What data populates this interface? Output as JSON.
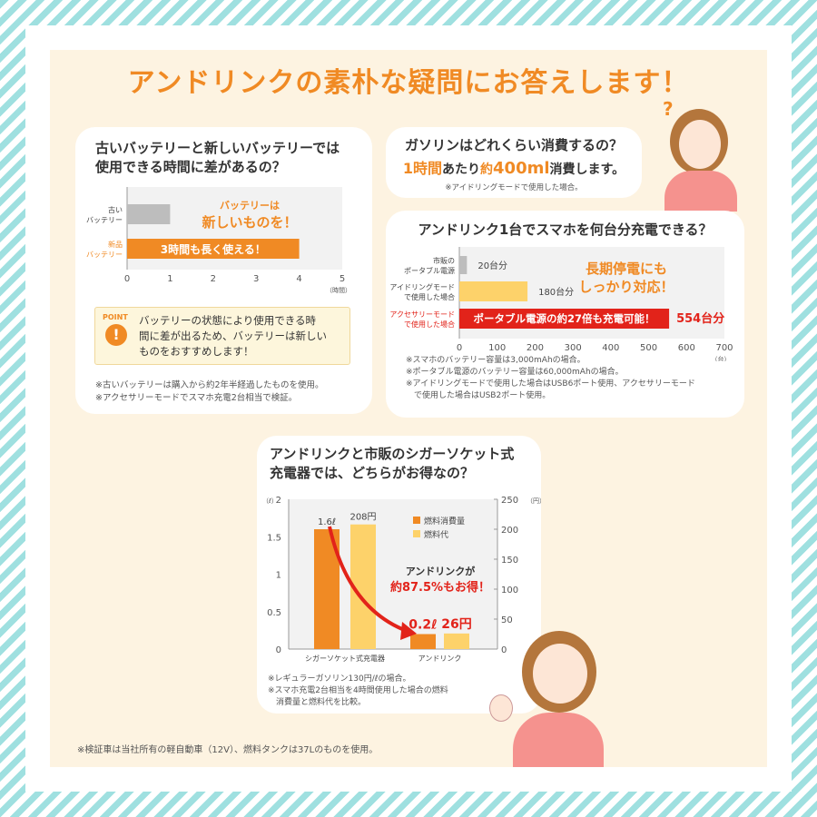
{
  "title": "アンドリンクの素朴な疑問にお答えします！",
  "colors": {
    "orange": "#f08a24",
    "yellow": "#fdd26a",
    "gray": "#bdbdbd",
    "red": "#e2231a",
    "accent_text": "#f08a24"
  },
  "card1": {
    "question": [
      "古いバッテリーと新しいバッテリーでは",
      "使用できる時間に差があるの？"
    ],
    "callout": [
      "バッテリーは",
      "新しいものを！"
    ],
    "bar_label_new": "3時間も長く使える！",
    "point_label": "POINT",
    "point_text": [
      "バッテリーの状態により使用できる時",
      "間に差が出るため、バッテリーは新しい",
      "ものをおすすめします！"
    ],
    "notes": [
      "※古いバッテリーは購入から約2年半経過したものを使用。",
      "※アクセサリーモードでスマホ充電2台相当で検証。"
    ]
  },
  "card2": {
    "question": "ガソリンはどれくらい消費するの？",
    "answer_prefix": "1時間",
    "answer_mid": "あたり",
    "answer_approx": "約",
    "answer_value": "400ml",
    "answer_suffix": "消費します。",
    "note": "※アイドリングモードで使用した場合。"
  },
  "card3": {
    "question": "アンドリンク1台でスマホを何台分充電できる？",
    "callout": [
      "長期停電にも",
      "しっかり対応！"
    ],
    "bar_label": "ポータブル電源の約27倍も充電可能！",
    "notes": [
      "※スマホのバッテリー容量は3,000mAhの場合。",
      "※ポータブル電源のバッテリー容量は60,000mAhの場合。",
      "※アイドリングモードで使用した場合はUSB6ポート使用、アクセサリーモード",
      "　で使用した場合はUSB2ポート使用。"
    ]
  },
  "card4": {
    "question": [
      "アンドリンクと市販のシガーソケット式",
      "充電器では、どちらがお得なの？"
    ],
    "callout": [
      "アンドリンクが",
      "約87.5%もお得！"
    ],
    "notes": [
      "※レギュラーガソリン130円/ℓの場合。",
      "※スマホ充電2台相当を4時間使用した場合の燃料",
      "　消費量と燃料代を比較。"
    ]
  },
  "footer": "※検証車は当社所有の軽自動車（12V）、燃料タンクは37Lのものを使用。",
  "chart_data": [
    {
      "type": "bar",
      "orientation": "horizontal",
      "title": "古いバッテリーと新しいバッテリーでは使用できる時間に差があるの？",
      "categories": [
        "古い\nバッテリー",
        "新品\nバッテリー"
      ],
      "values": [
        1,
        4
      ],
      "colors": [
        "#bdbdbd",
        "#f08a24"
      ],
      "xlabel": "（時間）",
      "xlim": [
        0,
        5
      ],
      "xticks": [
        "0",
        "1",
        "2",
        "3",
        "4",
        "5"
      ]
    },
    {
      "type": "bar",
      "orientation": "horizontal",
      "title": "アンドリンク1台でスマホを何台分充電できる？",
      "categories": [
        "市販の\nポータブル電源",
        "アイドリングモード\nで使用した場合",
        "アクセサリーモード\nで使用した場合"
      ],
      "values": [
        20,
        180,
        554
      ],
      "data_labels": [
        "20台分",
        "180台分",
        "554台分"
      ],
      "colors": [
        "#bdbdbd",
        "#fdd26a",
        "#e2231a"
      ],
      "xlabel": "（台）",
      "xlim": [
        0,
        700
      ],
      "xticks": [
        "0",
        "100",
        "200",
        "300",
        "400",
        "500",
        "600",
        "700"
      ]
    },
    {
      "type": "bar",
      "title": "アンドリンクと市販のシガーソケット式充電器では、どちらがお得なの？",
      "categories": [
        "シガーソケット式充電器",
        "アンドリンク"
      ],
      "series": [
        {
          "name": "燃料消費量",
          "axis": "left",
          "values": [
            1.6,
            0.2
          ],
          "data_labels": [
            "1.6ℓ",
            "0.2ℓ"
          ],
          "color": "#f08a24"
        },
        {
          "name": "燃料代",
          "axis": "right",
          "values": [
            208,
            26
          ],
          "data_labels": [
            "208円",
            "26円"
          ],
          "color": "#fdd26a"
        }
      ],
      "ylabel_left": "（ℓ）",
      "ylim_left": [
        0,
        2
      ],
      "yticks_left": [
        "0",
        "0.5",
        "1",
        "1.5",
        "2"
      ],
      "ylabel_right": "（円）",
      "ylim_right": [
        0,
        250
      ],
      "yticks_right": [
        "0",
        "50",
        "100",
        "150",
        "200",
        "250"
      ],
      "legend": "top-right"
    }
  ]
}
